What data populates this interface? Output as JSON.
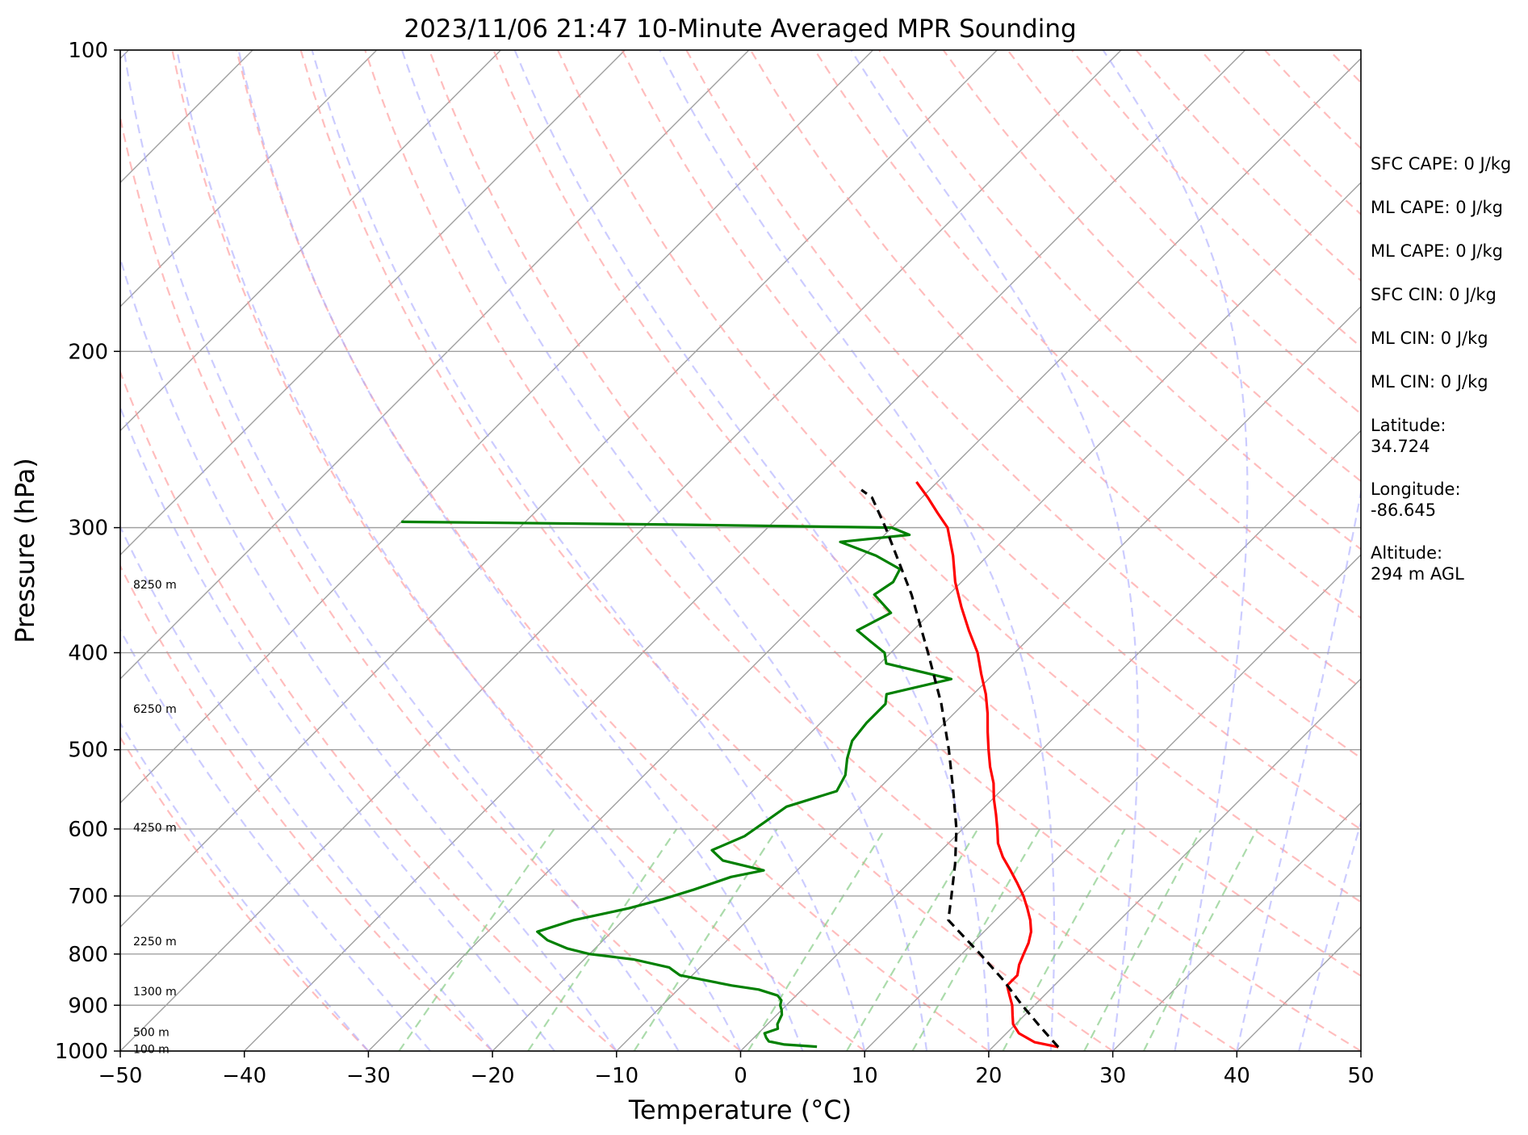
{
  "chart_data": {
    "type": "skew-t",
    "title": "2023/11/06 21:47 10-Minute Averaged MPR Sounding",
    "xlabel": "Temperature (°C)",
    "ylabel": "Pressure (hPa)",
    "xlim": [
      -50,
      50
    ],
    "ylim": [
      1000,
      100
    ],
    "y_scale": "log",
    "x_ticks": [
      -50,
      -40,
      -30,
      -20,
      -10,
      0,
      10,
      20,
      30,
      40,
      50
    ],
    "x_tick_labels": [
      "−50",
      "−40",
      "−30",
      "−20",
      "−10",
      "0",
      "10",
      "20",
      "30",
      "40",
      "50"
    ],
    "y_ticks": [
      100,
      200,
      300,
      400,
      500,
      600,
      700,
      800,
      900,
      1000
    ],
    "y_tick_labels": [
      "100",
      "200",
      "300",
      "400",
      "500",
      "600",
      "700",
      "800",
      "900",
      "1000"
    ],
    "grid": true,
    "series": [
      {
        "color": "#ff0000",
        "style": "solid",
        "points": [
          [
            991,
            25.3
          ],
          [
            980,
            23.0
          ],
          [
            960,
            21.0
          ],
          [
            940,
            19.8
          ],
          [
            920,
            19.0
          ],
          [
            900,
            18.2
          ],
          [
            880,
            17.2
          ],
          [
            860,
            16.2
          ],
          [
            840,
            16.2
          ],
          [
            820,
            15.5
          ],
          [
            800,
            15.0
          ],
          [
            780,
            14.5
          ],
          [
            760,
            13.8
          ],
          [
            740,
            12.8
          ],
          [
            720,
            11.6
          ],
          [
            700,
            10.3
          ],
          [
            680,
            8.8
          ],
          [
            660,
            7.2
          ],
          [
            640,
            5.5
          ],
          [
            620,
            4.0
          ],
          [
            600,
            2.8
          ],
          [
            580,
            1.5
          ],
          [
            560,
            0.1
          ],
          [
            540,
            -1.2
          ],
          [
            520,
            -2.8
          ],
          [
            500,
            -4.3
          ],
          [
            480,
            -5.8
          ],
          [
            460,
            -7.3
          ],
          [
            440,
            -9.0
          ],
          [
            420,
            -11.0
          ],
          [
            400,
            -13.0
          ],
          [
            380,
            -15.5
          ],
          [
            360,
            -18.0
          ],
          [
            340,
            -20.5
          ],
          [
            320,
            -22.8
          ],
          [
            300,
            -25.5
          ],
          [
            290,
            -27.5
          ],
          [
            280,
            -29.5
          ],
          [
            270,
            -31.7
          ]
        ]
      },
      {
        "color": "#008000",
        "style": "solid",
        "points": [
          [
            990,
            5.8
          ],
          [
            985,
            3.0
          ],
          [
            978,
            1.5
          ],
          [
            970,
            1.0
          ],
          [
            960,
            0.5
          ],
          [
            950,
            1.2
          ],
          [
            940,
            0.8
          ],
          [
            930,
            0.6
          ],
          [
            920,
            0.4
          ],
          [
            910,
            0.0
          ],
          [
            900,
            -0.5
          ],
          [
            890,
            -0.8
          ],
          [
            880,
            -1.5
          ],
          [
            868,
            -3.5
          ],
          [
            860,
            -6.0
          ],
          [
            840,
            -11.0
          ],
          [
            830,
            -12.0
          ],
          [
            825,
            -12.5
          ],
          [
            810,
            -16.0
          ],
          [
            800,
            -20.0
          ],
          [
            790,
            -22.2
          ],
          [
            775,
            -24.5
          ],
          [
            760,
            -26.0
          ],
          [
            740,
            -24.0
          ],
          [
            720,
            -20.5
          ],
          [
            705,
            -18.5
          ],
          [
            690,
            -16.8
          ],
          [
            670,
            -14.8
          ],
          [
            660,
            -12.7
          ],
          [
            645,
            -16.8
          ],
          [
            630,
            -18.5
          ],
          [
            610,
            -17.0
          ],
          [
            590,
            -16.5
          ],
          [
            570,
            -16.0
          ],
          [
            550,
            -13.2
          ],
          [
            530,
            -13.8
          ],
          [
            510,
            -15.0
          ],
          [
            490,
            -16.0
          ],
          [
            470,
            -16.3
          ],
          [
            450,
            -16.3
          ],
          [
            440,
            -17.0
          ],
          [
            425,
            -13.0
          ],
          [
            410,
            -19.5
          ],
          [
            400,
            -20.5
          ],
          [
            390,
            -22.5
          ],
          [
            380,
            -24.5
          ],
          [
            365,
            -23.2
          ],
          [
            350,
            -26.0
          ],
          [
            340,
            -25.5
          ],
          [
            330,
            -26.0
          ],
          [
            320,
            -29.0
          ],
          [
            310,
            -33.0
          ],
          [
            305,
            -28.0
          ],
          [
            300,
            -30.0
          ],
          [
            298,
            -47.0
          ],
          [
            296,
            -70.0
          ]
        ]
      },
      {
        "color": "#000000",
        "style": "dashed",
        "points": [
          [
            991,
            25.3
          ],
          [
            950,
            22.5
          ],
          [
            900,
            19.0
          ],
          [
            850,
            15.5
          ],
          [
            800,
            11.5
          ],
          [
            760,
            8.0
          ],
          [
            740,
            6.2
          ],
          [
            700,
            4.5
          ],
          [
            650,
            2.2
          ],
          [
            600,
            -0.5
          ],
          [
            550,
            -3.8
          ],
          [
            500,
            -7.5
          ],
          [
            450,
            -11.8
          ],
          [
            400,
            -17.0
          ],
          [
            350,
            -23.0
          ],
          [
            300,
            -30.5
          ],
          [
            280,
            -34.0
          ],
          [
            275,
            -35.5
          ]
        ]
      }
    ],
    "height_labels": [
      {
        "text": "8250 m",
        "p": 342
      },
      {
        "text": "6250 m",
        "p": 455
      },
      {
        "text": "4250 m",
        "p": 598
      },
      {
        "text": "2250 m",
        "p": 777
      },
      {
        "text": "1300 m",
        "p": 872
      },
      {
        "text": "500 m",
        "p": 957
      },
      {
        "text": "100 m",
        "p": 995
      }
    ],
    "reference_lines": {
      "isotherms_color": "#a0a0a0",
      "dry_adiabats_color": "#ff9999",
      "moist_adiabats_color": "#aaaaff",
      "mixing_ratio_color": "#88cc88"
    },
    "annotations": [
      "SFC CAPE: 0 J/kg",
      "ML CAPE: 0 J/kg",
      "ML CAPE: 0 J/kg",
      "SFC CIN: 0 J/kg",
      "ML CIN: 0 J/kg",
      "ML CIN: 0 J/kg",
      "Latitude:\n34.724",
      "Longitude:\n-86.645",
      "Altitude:\n294 m AGL"
    ]
  }
}
